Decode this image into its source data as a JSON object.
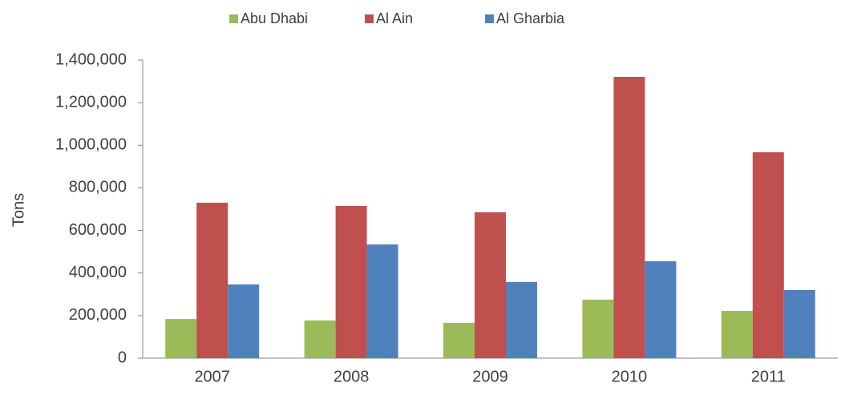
{
  "chart_data": {
    "type": "bar",
    "ylabel": "Tons",
    "categories": [
      "2007",
      "2008",
      "2009",
      "2010",
      "2011"
    ],
    "series": [
      {
        "name": "Abu Dhabi",
        "color": "#9bbb59",
        "values": [
          184000,
          177000,
          166000,
          275000,
          222000
        ]
      },
      {
        "name": "Al Ain",
        "color": "#c0504d",
        "values": [
          730000,
          715000,
          685000,
          1321000,
          967000
        ]
      },
      {
        "name": "Al Gharbia",
        "color": "#4f81bd",
        "values": [
          346000,
          534000,
          358000,
          455000,
          320000
        ]
      }
    ],
    "ylim": [
      0,
      1400000
    ],
    "yticks": [
      0,
      {
        "value": 200000,
        "label": "200,000"
      },
      {
        "value": 400000,
        "label": "400,000"
      },
      {
        "value": 600000,
        "label": "600,000"
      },
      {
        "value": 800000,
        "label": "800,000"
      },
      {
        "value": 1000000,
        "label": "1,000,000"
      },
      {
        "value": 1200000,
        "label": "1,200,000"
      },
      {
        "value": 1400000,
        "label": "1,400,000"
      }
    ],
    "grid": false,
    "legend": "top"
  }
}
